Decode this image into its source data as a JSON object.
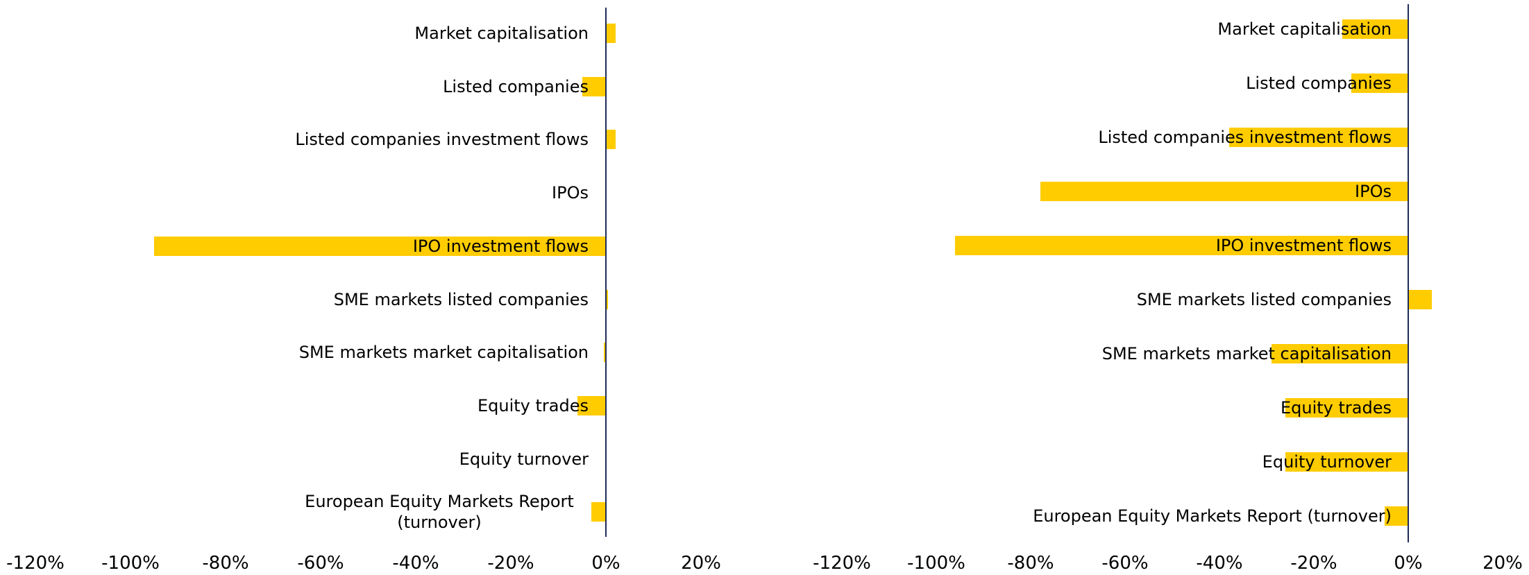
{
  "chart_data": [
    {
      "type": "bar",
      "orientation": "horizontal",
      "color": "#ffcc00",
      "categories": [
        "Market capitalisation",
        "Listed companies",
        "Listed companies investment flows",
        "IPOs",
        "IPO investment flows",
        "SME markets listed companies",
        "SME markets market capitalisation",
        "Equity trades",
        "Equity turnover",
        "European Equity Markets Report (turnover)"
      ],
      "values": [
        2,
        -5,
        2,
        0,
        -95,
        0.5,
        -0.5,
        -6,
        0,
        -3
      ],
      "xlim": [
        -120,
        20
      ],
      "xticks": [
        {
          "value": -120,
          "label": "-120%"
        },
        {
          "value": -100,
          "label": "-100%"
        },
        {
          "value": -80,
          "label": "-80%"
        },
        {
          "value": -60,
          "label": "-60%"
        },
        {
          "value": -40,
          "label": "-40%"
        },
        {
          "value": -20,
          "label": "-20%"
        },
        {
          "value": 0,
          "label": "0%"
        },
        {
          "value": 20,
          "label": "20%"
        }
      ]
    },
    {
      "type": "bar",
      "orientation": "horizontal",
      "color": "#ffcc00",
      "categories": [
        "Market capitalisation",
        "Listed companies",
        "Listed companies investment flows",
        "IPOs",
        "IPO investment flows",
        "SME markets listed companies",
        "SME markets market capitalisation",
        "Equity trades",
        "Equity turnover",
        "European Equity Markets Report (turnover)"
      ],
      "values": [
        -14,
        -12,
        -38,
        -78,
        -96,
        5,
        -29,
        -26,
        -26,
        -5
      ],
      "xlim": [
        -120,
        20
      ],
      "xticks": [
        {
          "value": -120,
          "label": "-120%"
        },
        {
          "value": -100,
          "label": "-100%"
        },
        {
          "value": -80,
          "label": "-80%"
        },
        {
          "value": -60,
          "label": "-60%"
        },
        {
          "value": -40,
          "label": "-40%"
        },
        {
          "value": -20,
          "label": "-20%"
        },
        {
          "value": 0,
          "label": "0%"
        },
        {
          "value": 20,
          "label": "20%"
        }
      ]
    }
  ]
}
